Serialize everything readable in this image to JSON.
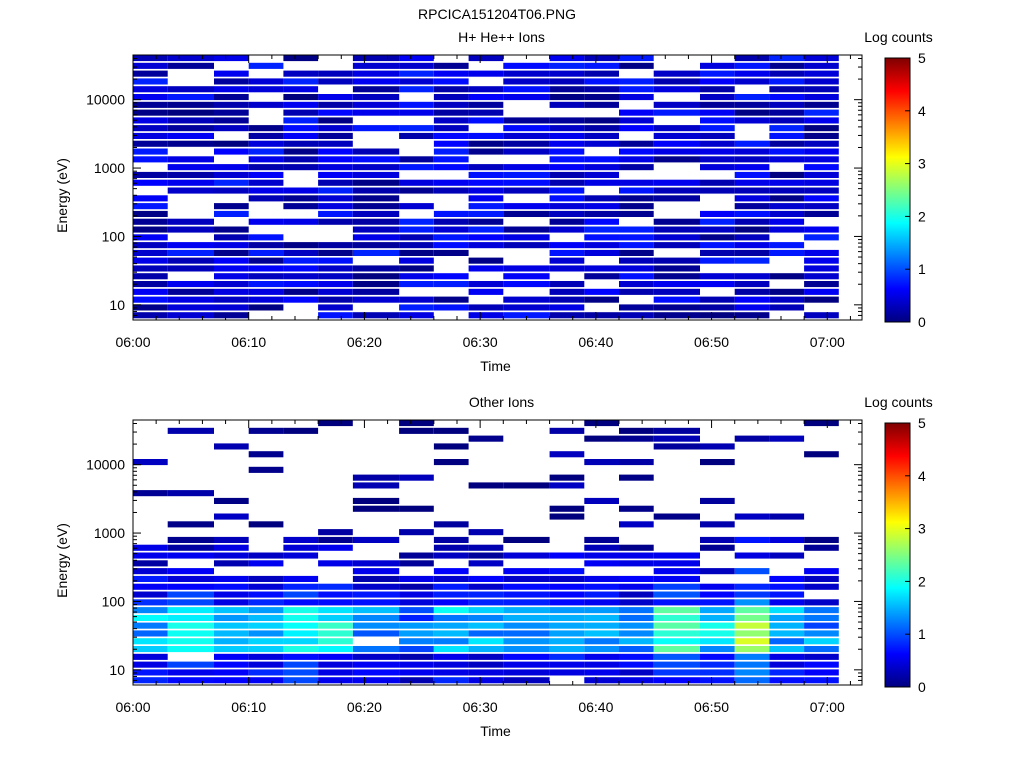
{
  "file_title": "RPCICA151204T06.PNG",
  "colors": {
    "colormap": [
      "#00007f",
      "#0000ff",
      "#0080ff",
      "#00ffff",
      "#80ff80",
      "#ffff00",
      "#ff8000",
      "#ff0000",
      "#7f0000"
    ]
  },
  "chart_data": [
    {
      "type": "heatmap",
      "title": "H+ He++ Ions",
      "xlabel": "Time",
      "ylabel": "Energy (eV)",
      "x_ticks": [
        "06:00",
        "06:10",
        "06:20",
        "06:30",
        "06:40",
        "06:50",
        "07:00"
      ],
      "y_ticks": [
        "10",
        "100",
        "1000",
        "10000"
      ],
      "y_scale": "log",
      "ylim": [
        6,
        45000
      ],
      "xlim": [
        "06:00",
        "07:03"
      ],
      "colorbar": {
        "label": "Log counts",
        "ticks": [
          "0",
          "1",
          "2",
          "3",
          "4",
          "5"
        ],
        "range": [
          0,
          5
        ]
      },
      "time_columns": [
        "06:00",
        "06:03",
        "06:07",
        "06:10",
        "06:13",
        "06:16",
        "06:19",
        "06:23",
        "06:26",
        "06:29",
        "06:32",
        "06:36",
        "06:39",
        "06:42",
        "06:45",
        "06:49",
        "06:52",
        "06:55",
        "06:58"
      ],
      "energy_range_ev": [
        6,
        45000
      ],
      "log_counts_range": [
        0,
        0.8
      ],
      "seed": 11,
      "fill_fraction": 0.82,
      "profile": "uniform"
    },
    {
      "type": "heatmap",
      "title": "Other Ions",
      "xlabel": "Time",
      "ylabel": "Energy (eV)",
      "x_ticks": [
        "06:00",
        "06:10",
        "06:20",
        "06:30",
        "06:40",
        "06:50",
        "07:00"
      ],
      "y_ticks": [
        "10",
        "100",
        "1000",
        "10000"
      ],
      "y_scale": "log",
      "ylim": [
        6,
        45000
      ],
      "xlim": [
        "06:00",
        "07:03"
      ],
      "colorbar": {
        "label": "Log counts",
        "ticks": [
          "0",
          "1",
          "2",
          "3",
          "4",
          "5"
        ],
        "range": [
          0,
          5
        ]
      },
      "time_columns": [
        "06:00",
        "06:03",
        "06:07",
        "06:10",
        "06:13",
        "06:16",
        "06:19",
        "06:23",
        "06:26",
        "06:29",
        "06:32",
        "06:36",
        "06:39",
        "06:42",
        "06:45",
        "06:49",
        "06:52",
        "06:55",
        "06:58"
      ],
      "energy_range_ev": [
        6,
        45000
      ],
      "log_counts_range": [
        0,
        3.2
      ],
      "peak_log_counts": [
        1.7,
        2.1,
        1.6,
        1.7,
        2.3,
        2.0,
        1.4,
        1.3,
        1.8,
        1.5,
        1.5,
        1.7,
        1.6,
        1.5,
        2.4,
        1.8,
        3.1,
        1.6,
        1.4
      ],
      "seed": 29,
      "fill_fraction": 0.35,
      "profile": "low-energy"
    }
  ]
}
